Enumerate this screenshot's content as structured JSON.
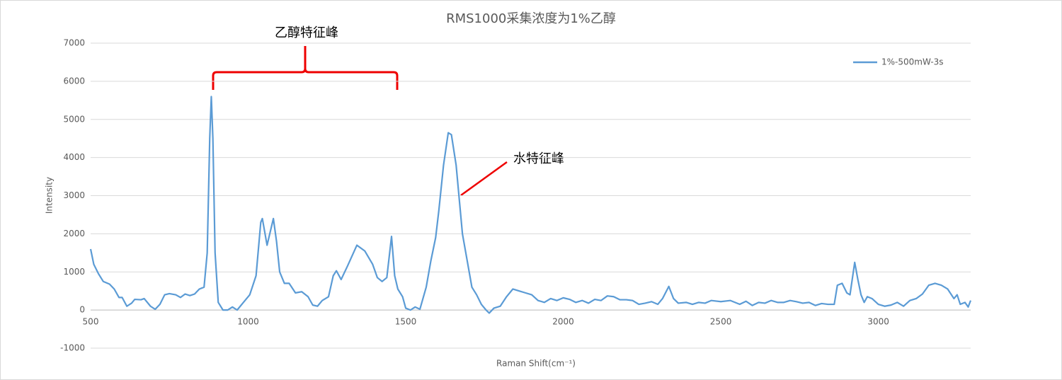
{
  "chart_data": {
    "type": "line",
    "title": "RMS1000采集浓度为1%乙醇",
    "x_label": "Raman Shift(cm⁻¹)",
    "y_label": "Intensity",
    "annotations": [
      "乙醇特征峰",
      "水特征峰"
    ],
    "legend_position": "top-right",
    "grid": true,
    "xlim": [
      500,
      3293
    ],
    "xticks": [
      500,
      1000,
      1500,
      2000,
      2500,
      3000
    ],
    "ylim": [
      -1000,
      7000
    ],
    "yticks": [
      -1000,
      0,
      1000,
      2000,
      3000,
      4000,
      5000,
      6000,
      7000
    ],
    "x": [
      500,
      510,
      525,
      540,
      560,
      575,
      590,
      600,
      615,
      630,
      640,
      660,
      670,
      690,
      705,
      720,
      735,
      750,
      770,
      785,
      800,
      815,
      830,
      845,
      860,
      870,
      878,
      883,
      888,
      895,
      905,
      920,
      935,
      950,
      965,
      985,
      1005,
      1025,
      1040,
      1045,
      1060,
      1080,
      1090,
      1100,
      1115,
      1130,
      1150,
      1170,
      1190,
      1205,
      1220,
      1235,
      1255,
      1270,
      1280,
      1295,
      1315,
      1345,
      1370,
      1395,
      1410,
      1425,
      1440,
      1455,
      1465,
      1475,
      1490,
      1500,
      1515,
      1530,
      1545,
      1565,
      1580,
      1595,
      1605,
      1620,
      1635,
      1645,
      1660,
      1680,
      1695,
      1710,
      1725,
      1740,
      1755,
      1765,
      1780,
      1800,
      1820,
      1840,
      1860,
      1880,
      1900,
      1920,
      1940,
      1960,
      1980,
      2000,
      2020,
      2040,
      2060,
      2080,
      2100,
      2120,
      2140,
      2160,
      2180,
      2200,
      2220,
      2240,
      2260,
      2280,
      2300,
      2315,
      2335,
      2350,
      2365,
      2390,
      2410,
      2430,
      2450,
      2470,
      2500,
      2530,
      2560,
      2580,
      2600,
      2620,
      2640,
      2660,
      2680,
      2700,
      2720,
      2740,
      2760,
      2780,
      2800,
      2820,
      2840,
      2860,
      2870,
      2885,
      2900,
      2910,
      2925,
      2935,
      2945,
      2955,
      2965,
      2980,
      3000,
      3020,
      3040,
      3060,
      3080,
      3100,
      3120,
      3140,
      3160,
      3180,
      3200,
      3220,
      3240,
      3250,
      3260,
      3275,
      3285,
      3293
    ],
    "series": [
      {
        "name": "1%-500mW-3s",
        "color": "#5b9bd5",
        "values": [
          1600,
          1200,
          950,
          750,
          680,
          550,
          330,
          330,
          100,
          180,
          280,
          270,
          300,
          100,
          20,
          150,
          400,
          430,
          400,
          330,
          420,
          380,
          420,
          550,
          600,
          1500,
          4500,
          5600,
          4500,
          1500,
          200,
          0,
          0,
          80,
          0,
          200,
          400,
          900,
          2300,
          2400,
          1700,
          2400,
          1800,
          1000,
          700,
          700,
          450,
          480,
          350,
          130,
          100,
          250,
          350,
          900,
          1030,
          800,
          1150,
          1700,
          1550,
          1200,
          850,
          750,
          850,
          1930,
          900,
          550,
          350,
          50,
          0,
          80,
          20,
          600,
          1300,
          1900,
          2600,
          3800,
          4650,
          4600,
          3800,
          2000,
          1300,
          600,
          400,
          150,
          0,
          -80,
          50,
          100,
          350,
          550,
          500,
          450,
          400,
          250,
          200,
          300,
          250,
          320,
          280,
          200,
          250,
          180,
          280,
          250,
          370,
          350,
          270,
          270,
          250,
          150,
          180,
          220,
          150,
          300,
          620,
          300,
          180,
          200,
          150,
          200,
          180,
          250,
          220,
          250,
          150,
          230,
          120,
          200,
          180,
          250,
          200,
          200,
          250,
          220,
          180,
          200,
          120,
          170,
          150,
          150,
          650,
          700,
          450,
          400,
          1250,
          800,
          400,
          200,
          350,
          300,
          150,
          100,
          130,
          200,
          100,
          250,
          300,
          420,
          650,
          700,
          650,
          550,
          300,
          400,
          150,
          200,
          80,
          250
        ]
      }
    ]
  }
}
